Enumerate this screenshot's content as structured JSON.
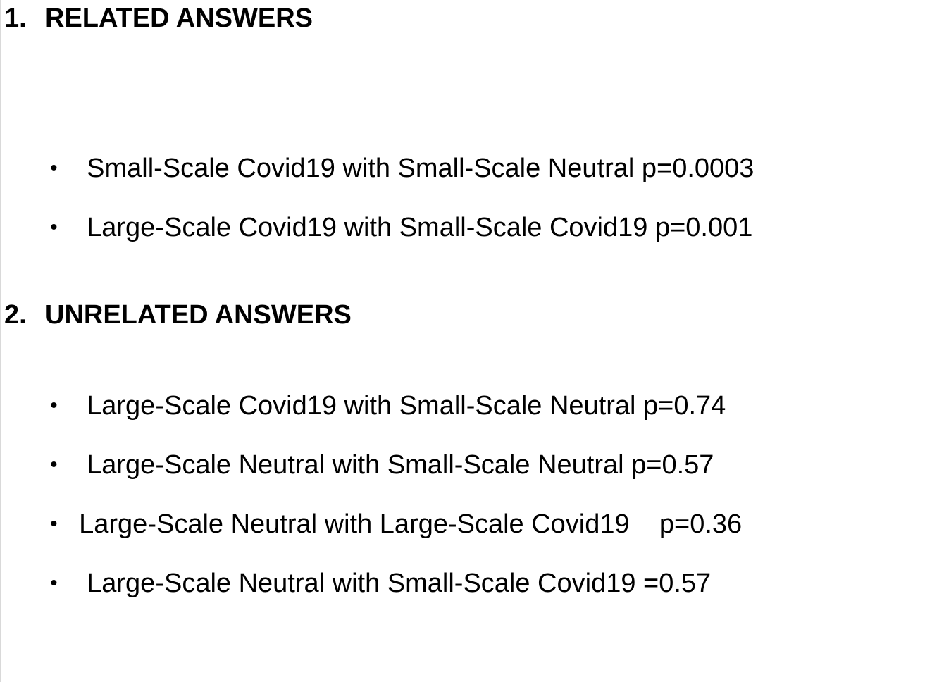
{
  "sections": [
    {
      "number": "1.",
      "title": "RELATED ANSWERS",
      "items": [
        {
          "bullet": "•",
          "text": "Small-Scale Covid19 with Small-Scale Neutral p=0.0003"
        },
        {
          "bullet": "•",
          "text": "Large-Scale Covid19 with Small-Scale Covid19 p=0.001"
        }
      ]
    },
    {
      "number": "2.",
      "title": "UNRELATED ANSWERS",
      "items": [
        {
          "bullet": "•",
          "text": "Large-Scale Covid19 with Small-Scale Neutral p=0.74"
        },
        {
          "bullet": "•",
          "text": "Large-Scale Neutral with Small-Scale Neutral p=0.57"
        },
        {
          "bullet": "•",
          "text": "Large-Scale Neutral with Large-Scale Covid19    p=0.36"
        },
        {
          "bullet": "•",
          "text": "Large-Scale Neutral with Small-Scale Covid19 =0.57"
        }
      ]
    }
  ]
}
